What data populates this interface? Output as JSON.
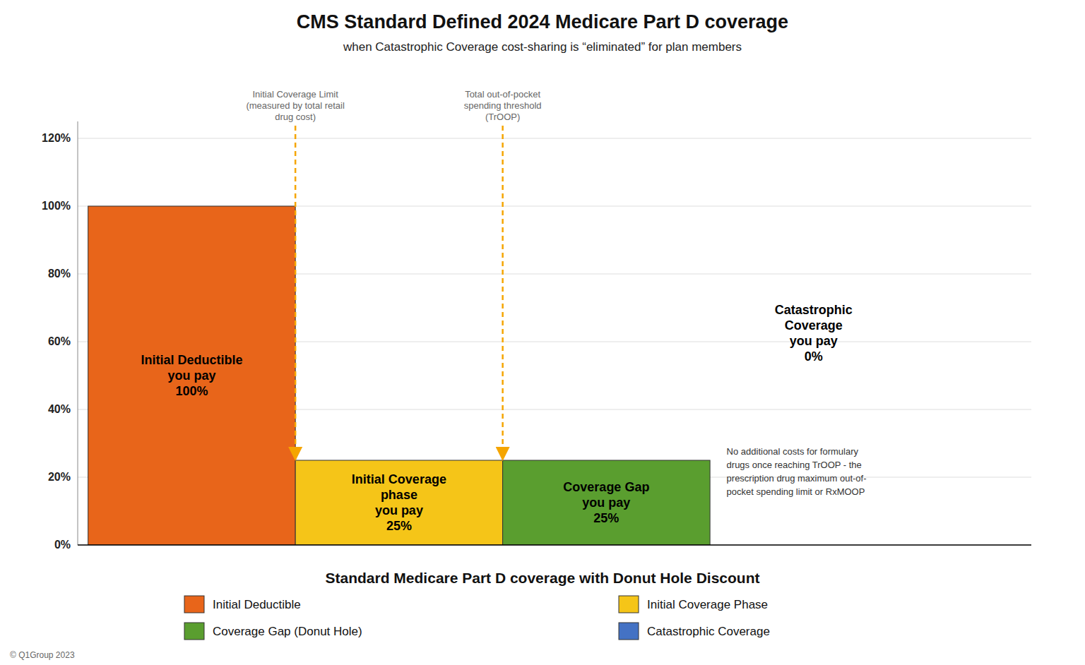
{
  "chart_data": {
    "type": "bar",
    "title": "CMS Standard Defined 2024 Medicare Part D coverage",
    "subtitle": "when Catastrophic Coverage cost-sharing is “eliminated” for plan members",
    "categories": [
      "Initial Deductible",
      "Initial Coverage Phase",
      "Coverage Gap (Donut Hole)",
      "Catastrophic Coverage"
    ],
    "values": [
      1.0,
      0.25,
      0.25,
      0.0
    ],
    "value_labels": [
      "Initial Deductible\nyou pay\n100%",
      "Initial Coverage\nphase\nyou pay\n25%",
      "Coverage Gap\nyou pay\n25%",
      "Catastrophic\nCoverage\nyou pay\n0%"
    ],
    "data_labels": true,
    "colors": [
      "#E8651A",
      "#F5C518",
      "#5A9E2F",
      "#4472C4"
    ],
    "ylim": [
      0,
      1.25
    ],
    "yticks": [
      {
        "value": 0.0,
        "label": "0%"
      },
      {
        "value": 0.2,
        "label": "20%"
      },
      {
        "value": 0.4,
        "label": "40%"
      },
      {
        "value": 0.6,
        "label": "60%"
      },
      {
        "value": 0.8,
        "label": "80%"
      },
      {
        "value": 1.0,
        "label": "100%"
      },
      {
        "value": 1.2,
        "label": "120%"
      }
    ],
    "grid": true,
    "tick_labels": "y",
    "legend": "bottom",
    "annotations": [
      "Initial Coverage Limit\n(measured by total retail\ndrug cost)",
      "Total out-of-pocket\nspending threshold\n(TrOOP)",
      "No additional costs for formulary\ndrugs once reaching TrOOP - the\nprescription drug maximum out-of-\npocket spending limit or RxMOOP"
    ],
    "footer": "Standard Medicare Part D coverage with Donut Hole Discount",
    "copyright": "© Q1Group 2023"
  }
}
